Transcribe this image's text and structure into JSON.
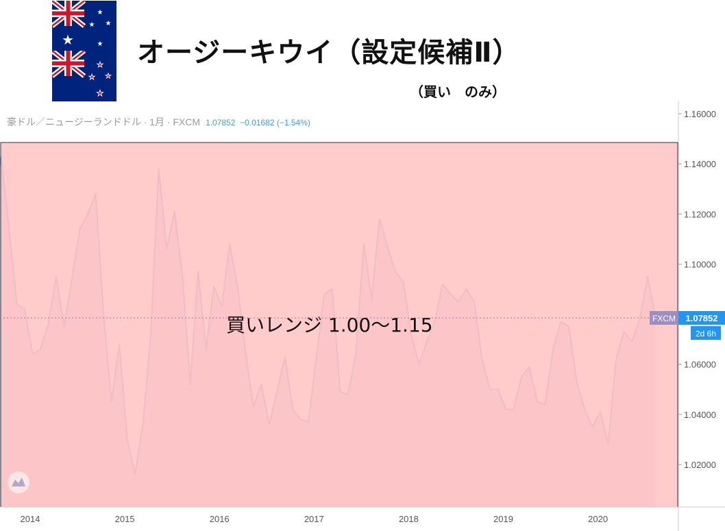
{
  "header": {
    "title": "オージーキウイ（設定候補Ⅱ）",
    "subtitle": "（買い　のみ）"
  },
  "chart_header": {
    "symbol": "豪ドル／ニュージーランドドル · 1月 · FXCM",
    "last": "1.07852",
    "change": "−0.01682",
    "change_pct": "(−1.54%)"
  },
  "flags": {
    "top_icon": "australia-flag-icon",
    "bottom_icon": "new-zealand-flag-icon"
  },
  "annotation": {
    "text": "買いレンジ  1.00〜1.15",
    "range_low": 1.0,
    "range_high": 1.15,
    "fill_color": "#ffc4c4",
    "border_color": "#333333"
  },
  "price_label": {
    "source": "FXCM",
    "value": "1.07852",
    "countdown": "2d 6h",
    "color": "#2196f3"
  },
  "colors": {
    "line": "#8c93c9",
    "area": "#c9b3d6",
    "axis_text": "#555555"
  },
  "chart_data": {
    "type": "area",
    "title": "豪ドル／ニュージーランドドル · 1月 · FXCM",
    "x_tick_labels": [
      "2014",
      "2015",
      "2016",
      "2017",
      "2018",
      "2019",
      "2020"
    ],
    "y_tick_labels": [
      "1.02000",
      "1.04000",
      "1.06000",
      "1.08000",
      "1.10000",
      "1.12000",
      "1.14000",
      "1.16000"
    ],
    "ylim": [
      1.0,
      1.165
    ],
    "grid": false,
    "last_value": 1.07852,
    "series": [
      {
        "values": [
          {
            "x": "2013-09",
            "y": 1.125
          },
          {
            "x": "2013-10",
            "y": 1.143
          },
          {
            "x": "2013-11",
            "y": 1.115
          },
          {
            "x": "2013-12",
            "y": 1.084
          },
          {
            "x": "2014-01",
            "y": 1.082
          },
          {
            "x": "2014-02",
            "y": 1.064
          },
          {
            "x": "2014-03",
            "y": 1.066
          },
          {
            "x": "2014-04",
            "y": 1.076
          },
          {
            "x": "2014-05",
            "y": 1.095
          },
          {
            "x": "2014-06",
            "y": 1.075
          },
          {
            "x": "2014-07",
            "y": 1.094
          },
          {
            "x": "2014-08",
            "y": 1.114
          },
          {
            "x": "2014-09",
            "y": 1.12
          },
          {
            "x": "2014-10",
            "y": 1.128
          },
          {
            "x": "2014-11",
            "y": 1.08
          },
          {
            "x": "2014-12",
            "y": 1.045
          },
          {
            "x": "2015-01",
            "y": 1.068
          },
          {
            "x": "2015-02",
            "y": 1.03
          },
          {
            "x": "2015-03",
            "y": 1.016
          },
          {
            "x": "2015-04",
            "y": 1.036
          },
          {
            "x": "2015-05",
            "y": 1.072
          },
          {
            "x": "2015-06",
            "y": 1.138
          },
          {
            "x": "2015-07",
            "y": 1.106
          },
          {
            "x": "2015-08",
            "y": 1.121
          },
          {
            "x": "2015-09",
            "y": 1.095
          },
          {
            "x": "2015-10",
            "y": 1.052
          },
          {
            "x": "2015-11",
            "y": 1.097
          },
          {
            "x": "2015-12",
            "y": 1.066
          },
          {
            "x": "2016-01",
            "y": 1.091
          },
          {
            "x": "2016-02",
            "y": 1.083
          },
          {
            "x": "2016-03",
            "y": 1.108
          },
          {
            "x": "2016-04",
            "y": 1.091
          },
          {
            "x": "2016-05",
            "y": 1.065
          },
          {
            "x": "2016-06",
            "y": 1.043
          },
          {
            "x": "2016-07",
            "y": 1.052
          },
          {
            "x": "2016-08",
            "y": 1.036
          },
          {
            "x": "2016-09",
            "y": 1.049
          },
          {
            "x": "2016-10",
            "y": 1.063
          },
          {
            "x": "2016-11",
            "y": 1.042
          },
          {
            "x": "2016-12",
            "y": 1.038
          },
          {
            "x": "2017-01",
            "y": 1.037
          },
          {
            "x": "2017-02",
            "y": 1.063
          },
          {
            "x": "2017-03",
            "y": 1.088
          },
          {
            "x": "2017-04",
            "y": 1.09
          },
          {
            "x": "2017-05",
            "y": 1.049
          },
          {
            "x": "2017-06",
            "y": 1.048
          },
          {
            "x": "2017-07",
            "y": 1.064
          },
          {
            "x": "2017-08",
            "y": 1.108
          },
          {
            "x": "2017-09",
            "y": 1.086
          },
          {
            "x": "2017-10",
            "y": 1.118
          },
          {
            "x": "2017-11",
            "y": 1.107
          },
          {
            "x": "2017-12",
            "y": 1.097
          },
          {
            "x": "2018-01",
            "y": 1.093
          },
          {
            "x": "2018-02",
            "y": 1.072
          },
          {
            "x": "2018-03",
            "y": 1.06
          },
          {
            "x": "2018-04",
            "y": 1.069
          },
          {
            "x": "2018-05",
            "y": 1.077
          },
          {
            "x": "2018-06",
            "y": 1.092
          },
          {
            "x": "2018-07",
            "y": 1.088
          },
          {
            "x": "2018-08",
            "y": 1.085
          },
          {
            "x": "2018-09",
            "y": 1.09
          },
          {
            "x": "2018-10",
            "y": 1.085
          },
          {
            "x": "2018-11",
            "y": 1.062
          },
          {
            "x": "2018-12",
            "y": 1.05
          },
          {
            "x": "2019-01",
            "y": 1.05
          },
          {
            "x": "2019-02",
            "y": 1.042
          },
          {
            "x": "2019-03",
            "y": 1.042
          },
          {
            "x": "2019-04",
            "y": 1.055
          },
          {
            "x": "2019-05",
            "y": 1.059
          },
          {
            "x": "2019-06",
            "y": 1.045
          },
          {
            "x": "2019-07",
            "y": 1.044
          },
          {
            "x": "2019-08",
            "y": 1.066
          },
          {
            "x": "2019-09",
            "y": 1.077
          },
          {
            "x": "2019-10",
            "y": 1.075
          },
          {
            "x": "2019-11",
            "y": 1.053
          },
          {
            "x": "2019-12",
            "y": 1.042
          },
          {
            "x": "2020-01",
            "y": 1.035
          },
          {
            "x": "2020-02",
            "y": 1.041
          },
          {
            "x": "2020-03",
            "y": 1.028
          },
          {
            "x": "2020-04",
            "y": 1.062
          },
          {
            "x": "2020-05",
            "y": 1.073
          },
          {
            "x": "2020-06",
            "y": 1.069
          },
          {
            "x": "2020-07",
            "y": 1.078
          },
          {
            "x": "2020-08",
            "y": 1.095
          },
          {
            "x": "2020-09",
            "y": 1.07852
          }
        ]
      }
    ]
  }
}
